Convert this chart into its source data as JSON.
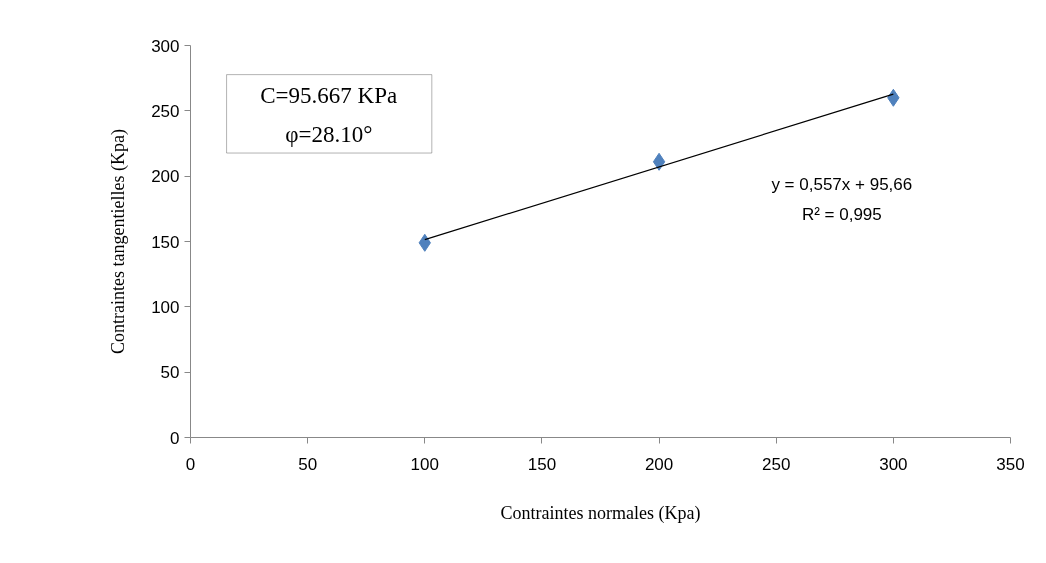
{
  "chart_data": {
    "type": "scatter",
    "xlabel": "Contraintes normales (Kpa)",
    "ylabel": "Contraintes tangentielles (Kpa)",
    "x": [
      100,
      200,
      300
    ],
    "series": [
      {
        "color": "#4f81bd",
        "values": [
          149,
          211,
          260
        ],
        "marker": "diamond"
      },
      {
        "type": "line",
        "color": "#000000",
        "x": [
          100,
          300
        ],
        "values": [
          151.4,
          262.8
        ],
        "marker": "none"
      }
    ],
    "annotations": [
      "C=95.667 KPa",
      "φ=28.10°",
      "y = 0,557x + 95,66",
      "R² = 0,995"
    ],
    "xlim": [
      0,
      350
    ],
    "xticks": [
      0,
      50,
      100,
      150,
      200,
      250,
      300,
      350
    ],
    "ylim": [
      0,
      300
    ],
    "yticks": [
      0,
      50,
      100,
      150,
      200,
      250,
      300
    ],
    "grid": false
  }
}
